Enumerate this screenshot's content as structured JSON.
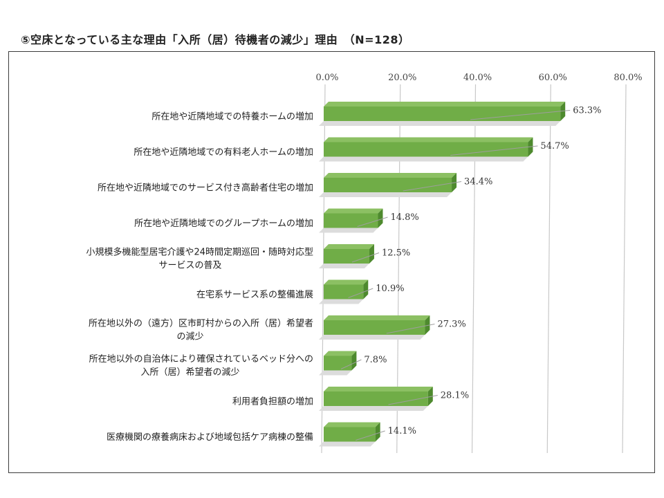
{
  "title": "⑤空床となっている主な理由「入所（居）待機者の減少」理由　（N=128）",
  "chart_data": {
    "type": "bar",
    "orientation": "horizontal",
    "title": "⑤空床となっている主な理由「入所（居）待機者の減少」理由　（N=128）",
    "xlim": [
      0,
      80
    ],
    "ticks": [
      0,
      20,
      40,
      60,
      80
    ],
    "tick_labels": [
      "0.0%",
      "20.0%",
      "40.0%",
      "60.0%",
      "80.0%"
    ],
    "grid": true,
    "bar_color": "#70ad47",
    "categories": [
      [
        "所在地や近隣地域での特養ホームの増加"
      ],
      [
        "所在地や近隣地域での有料老人ホームの増加"
      ],
      [
        "所在地や近隣地域でのサービス付き高齢者住宅の増加"
      ],
      [
        "所在地や近隣地域でのグループホームの増加"
      ],
      [
        "小規模多機能型居宅介護や24時間定期巡回・随時対応型",
        "サービスの普及"
      ],
      [
        "在宅系サービス系の整備進展"
      ],
      [
        "所在地以外の（遠方）区市町村からの入所（居）希望者",
        "の減少"
      ],
      [
        "所在地以外の自治体により確保されているベッド分への",
        "入所（居）希望者の減少"
      ],
      [
        "利用者負担額の増加"
      ],
      [
        "医療機関の療養病床および地域包括ケア病棟の整備"
      ]
    ],
    "values": [
      63.3,
      54.7,
      34.4,
      14.8,
      12.5,
      10.9,
      27.3,
      7.8,
      28.1,
      14.1
    ],
    "value_labels": [
      "63.3%",
      "54.7%",
      "34.4%",
      "14.8%",
      "12.5%",
      "10.9%",
      "27.3%",
      "7.8%",
      "28.1%",
      "14.1%"
    ]
  }
}
